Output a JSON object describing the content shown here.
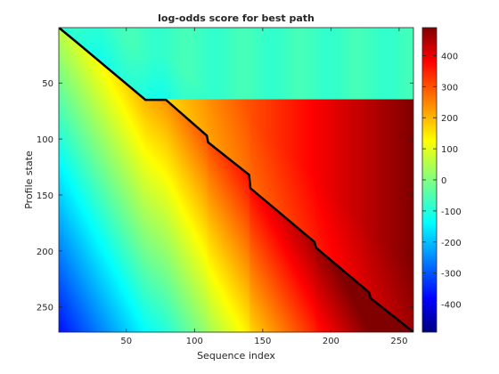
{
  "chart_data": {
    "type": "heatmap",
    "title": "log-odds score for best path",
    "xlabel": "Sequence index",
    "ylabel": "Profile state",
    "xlim": [
      1,
      260
    ],
    "ylim": [
      1,
      272
    ],
    "y_reversed": true,
    "xticks": [
      "50",
      "100",
      "150",
      "200",
      "250"
    ],
    "yticks": [
      "50",
      "100",
      "150",
      "200",
      "250"
    ],
    "colormap": "jet",
    "colorbar": {
      "min": -490,
      "max": 490,
      "ticks": [
        "400",
        "300",
        "200",
        "100",
        "0",
        "-100",
        "-200",
        "-300",
        "-400"
      ]
    },
    "path": [
      [
        1,
        1
      ],
      [
        14,
        14
      ],
      [
        64,
        65
      ],
      [
        79,
        65
      ],
      [
        109,
        97
      ],
      [
        110,
        103
      ],
      [
        140,
        132
      ],
      [
        141,
        144
      ],
      [
        188,
        192
      ],
      [
        189,
        197
      ],
      [
        228,
        237
      ],
      [
        229,
        242
      ],
      [
        260,
        272
      ]
    ],
    "path_color": "#000000"
  }
}
